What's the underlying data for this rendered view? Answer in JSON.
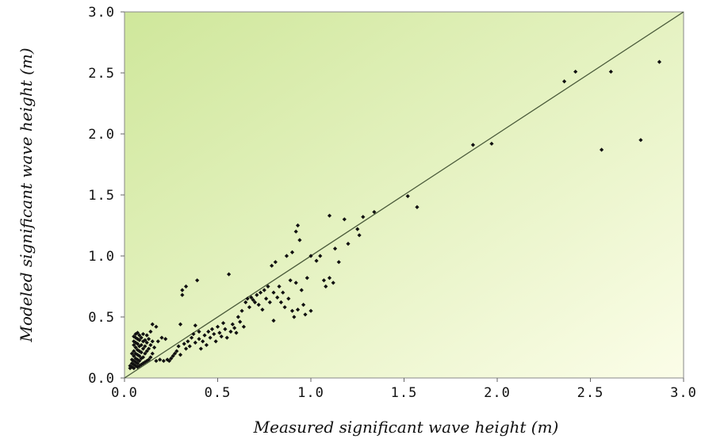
{
  "chart_data": {
    "type": "scatter",
    "title": "",
    "xlabel": "Measured significant wave height (m)",
    "ylabel": "Modeled significant wave height (m)",
    "xlim": [
      0,
      3.0
    ],
    "ylim": [
      0,
      3.0
    ],
    "x_ticks": [
      "0.0",
      "0.5",
      "1.0",
      "1.5",
      "2.0",
      "2.5",
      "3.0"
    ],
    "y_ticks": [
      "0.0",
      "0.5",
      "1.0",
      "1.5",
      "2.0",
      "2.5",
      "3.0"
    ],
    "grid": false,
    "legend": "none",
    "reference_line": {
      "from": [
        0,
        0
      ],
      "to": [
        3.0,
        3.0
      ]
    },
    "colors": {
      "plot_bg_top_left": "#cfe79b",
      "plot_bg_bottom_right": "#fbfde8",
      "points": "#111111",
      "reference_line": "#4a5a3a"
    },
    "series": [
      {
        "points": [
          [
            0.03,
            0.08
          ],
          [
            0.03,
            0.1
          ],
          [
            0.04,
            0.09
          ],
          [
            0.04,
            0.12
          ],
          [
            0.04,
            0.15
          ],
          [
            0.04,
            0.2
          ],
          [
            0.05,
            0.08
          ],
          [
            0.05,
            0.11
          ],
          [
            0.05,
            0.14
          ],
          [
            0.05,
            0.18
          ],
          [
            0.05,
            0.22
          ],
          [
            0.05,
            0.27
          ],
          [
            0.05,
            0.3
          ],
          [
            0.05,
            0.34
          ],
          [
            0.06,
            0.1
          ],
          [
            0.06,
            0.13
          ],
          [
            0.06,
            0.16
          ],
          [
            0.06,
            0.2
          ],
          [
            0.06,
            0.25
          ],
          [
            0.06,
            0.29
          ],
          [
            0.06,
            0.33
          ],
          [
            0.06,
            0.36
          ],
          [
            0.07,
            0.09
          ],
          [
            0.07,
            0.12
          ],
          [
            0.07,
            0.15
          ],
          [
            0.07,
            0.19
          ],
          [
            0.07,
            0.23
          ],
          [
            0.07,
            0.28
          ],
          [
            0.07,
            0.32
          ],
          [
            0.07,
            0.37
          ],
          [
            0.08,
            0.1
          ],
          [
            0.08,
            0.14
          ],
          [
            0.08,
            0.18
          ],
          [
            0.08,
            0.22
          ],
          [
            0.08,
            0.26
          ],
          [
            0.08,
            0.31
          ],
          [
            0.08,
            0.35
          ],
          [
            0.09,
            0.11
          ],
          [
            0.09,
            0.16
          ],
          [
            0.09,
            0.21
          ],
          [
            0.09,
            0.27
          ],
          [
            0.09,
            0.33
          ],
          [
            0.1,
            0.12
          ],
          [
            0.1,
            0.17
          ],
          [
            0.1,
            0.24
          ],
          [
            0.1,
            0.3
          ],
          [
            0.1,
            0.36
          ],
          [
            0.11,
            0.13
          ],
          [
            0.11,
            0.2
          ],
          [
            0.11,
            0.26
          ],
          [
            0.11,
            0.31
          ],
          [
            0.12,
            0.14
          ],
          [
            0.12,
            0.22
          ],
          [
            0.12,
            0.29
          ],
          [
            0.12,
            0.35
          ],
          [
            0.13,
            0.15
          ],
          [
            0.13,
            0.24
          ],
          [
            0.13,
            0.32
          ],
          [
            0.14,
            0.17
          ],
          [
            0.14,
            0.27
          ],
          [
            0.14,
            0.38
          ],
          [
            0.15,
            0.2
          ],
          [
            0.15,
            0.3
          ],
          [
            0.15,
            0.44
          ],
          [
            0.16,
            0.25
          ],
          [
            0.17,
            0.42
          ],
          [
            0.17,
            0.14
          ],
          [
            0.18,
            0.3
          ],
          [
            0.19,
            0.15
          ],
          [
            0.2,
            0.33
          ],
          [
            0.21,
            0.14
          ],
          [
            0.22,
            0.32
          ],
          [
            0.23,
            0.15
          ],
          [
            0.24,
            0.14
          ],
          [
            0.25,
            0.16
          ],
          [
            0.26,
            0.18
          ],
          [
            0.27,
            0.2
          ],
          [
            0.28,
            0.22
          ],
          [
            0.29,
            0.26
          ],
          [
            0.3,
            0.19
          ],
          [
            0.3,
            0.44
          ],
          [
            0.31,
            0.72
          ],
          [
            0.31,
            0.68
          ],
          [
            0.32,
            0.28
          ],
          [
            0.33,
            0.75
          ],
          [
            0.33,
            0.24
          ],
          [
            0.34,
            0.3
          ],
          [
            0.35,
            0.26
          ],
          [
            0.36,
            0.33
          ],
          [
            0.37,
            0.36
          ],
          [
            0.38,
            0.43
          ],
          [
            0.38,
            0.29
          ],
          [
            0.39,
            0.8
          ],
          [
            0.4,
            0.32
          ],
          [
            0.4,
            0.38
          ],
          [
            0.41,
            0.24
          ],
          [
            0.42,
            0.3
          ],
          [
            0.43,
            0.35
          ],
          [
            0.44,
            0.27
          ],
          [
            0.45,
            0.38
          ],
          [
            0.46,
            0.33
          ],
          [
            0.47,
            0.4
          ],
          [
            0.48,
            0.36
          ],
          [
            0.49,
            0.3
          ],
          [
            0.5,
            0.42
          ],
          [
            0.51,
            0.37
          ],
          [
            0.52,
            0.34
          ],
          [
            0.53,
            0.45
          ],
          [
            0.54,
            0.4
          ],
          [
            0.55,
            0.33
          ],
          [
            0.56,
            0.85
          ],
          [
            0.57,
            0.38
          ],
          [
            0.58,
            0.44
          ],
          [
            0.59,
            0.41
          ],
          [
            0.6,
            0.37
          ],
          [
            0.61,
            0.5
          ],
          [
            0.62,
            0.46
          ],
          [
            0.63,
            0.55
          ],
          [
            0.64,
            0.42
          ],
          [
            0.65,
            0.62
          ],
          [
            0.66,
            0.65
          ],
          [
            0.67,
            0.58
          ],
          [
            0.68,
            0.66
          ],
          [
            0.69,
            0.64
          ],
          [
            0.7,
            0.62
          ],
          [
            0.71,
            0.68
          ],
          [
            0.72,
            0.6
          ],
          [
            0.73,
            0.7
          ],
          [
            0.74,
            0.56
          ],
          [
            0.75,
            0.72
          ],
          [
            0.76,
            0.65
          ],
          [
            0.77,
            0.75
          ],
          [
            0.78,
            0.62
          ],
          [
            0.79,
            0.92
          ],
          [
            0.8,
            0.47
          ],
          [
            0.8,
            0.7
          ],
          [
            0.81,
            0.95
          ],
          [
            0.82,
            0.66
          ],
          [
            0.83,
            0.75
          ],
          [
            0.84,
            0.62
          ],
          [
            0.85,
            0.7
          ],
          [
            0.86,
            0.58
          ],
          [
            0.87,
            1.0
          ],
          [
            0.88,
            0.65
          ],
          [
            0.89,
            0.8
          ],
          [
            0.9,
            0.55
          ],
          [
            0.9,
            1.03
          ],
          [
            0.91,
            0.5
          ],
          [
            0.92,
            1.2
          ],
          [
            0.92,
            0.78
          ],
          [
            0.93,
            1.25
          ],
          [
            0.93,
            0.56
          ],
          [
            0.94,
            1.13
          ],
          [
            0.95,
            0.72
          ],
          [
            0.96,
            0.6
          ],
          [
            0.97,
            0.52
          ],
          [
            0.98,
            0.82
          ],
          [
            1.0,
            1.0
          ],
          [
            1.0,
            0.55
          ],
          [
            1.03,
            0.96
          ],
          [
            1.05,
            1.0
          ],
          [
            1.07,
            0.8
          ],
          [
            1.08,
            0.75
          ],
          [
            1.1,
            1.33
          ],
          [
            1.1,
            0.82
          ],
          [
            1.12,
            0.78
          ],
          [
            1.13,
            1.06
          ],
          [
            1.15,
            0.95
          ],
          [
            1.18,
            1.3
          ],
          [
            1.2,
            1.1
          ],
          [
            1.25,
            1.22
          ],
          [
            1.26,
            1.17
          ],
          [
            1.28,
            1.32
          ],
          [
            1.34,
            1.36
          ],
          [
            1.52,
            1.49
          ],
          [
            1.57,
            1.4
          ],
          [
            1.87,
            1.91
          ],
          [
            1.97,
            1.92
          ],
          [
            2.36,
            2.43
          ],
          [
            2.42,
            2.51
          ],
          [
            2.56,
            1.87
          ],
          [
            2.61,
            2.51
          ],
          [
            2.77,
            1.95
          ],
          [
            2.87,
            2.59
          ]
        ]
      }
    ]
  }
}
